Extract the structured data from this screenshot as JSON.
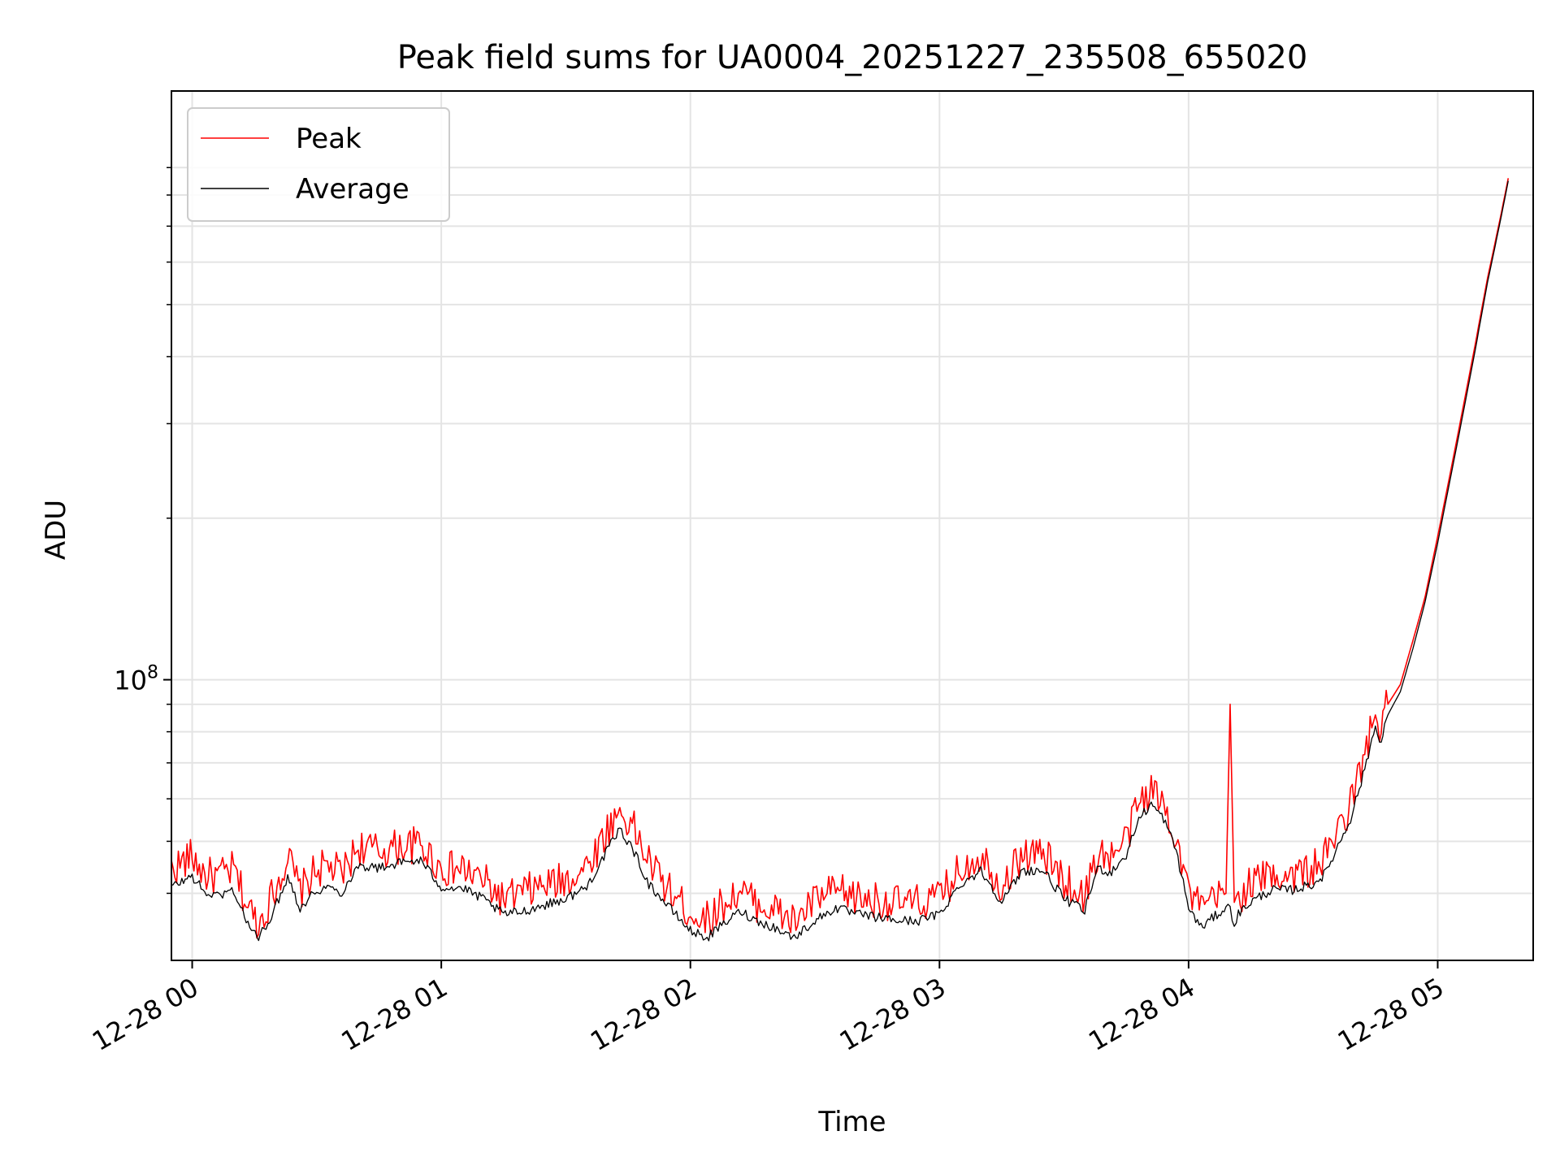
{
  "chart_data": {
    "type": "line",
    "title": "Peak field sums for UA0004_20251227_235508_655020",
    "xlabel": "Time",
    "ylabel": "ADU",
    "y_scale": "log",
    "ylim": [
      30000000,
      1250000000
    ],
    "xlim": [
      "2025-12-27 23:55",
      "2025-12-28 05:23"
    ],
    "grid": true,
    "legend_position": "upper left",
    "x_ticks": [
      {
        "value": "2025-12-28 00:00",
        "label": "12-28 00"
      },
      {
        "value": "2025-12-28 01:00",
        "label": "12-28 01"
      },
      {
        "value": "2025-12-28 02:00",
        "label": "12-28 02"
      },
      {
        "value": "2025-12-28 03:00",
        "label": "12-28 03"
      },
      {
        "value": "2025-12-28 04:00",
        "label": "12-28 04"
      },
      {
        "value": "2025-12-28 05:00",
        "label": "12-28 05"
      }
    ],
    "y_major_tick": {
      "value": 100000000,
      "label_base": "10",
      "label_exponent": "8"
    },
    "y_minor_ticks": [
      40000000,
      50000000,
      60000000,
      70000000,
      80000000,
      90000000,
      200000000,
      300000000,
      400000000,
      500000000,
      600000000,
      700000000,
      800000000,
      900000000
    ],
    "series": [
      {
        "name": "Peak",
        "color": "#ff0000",
        "x": [
          "2025-12-27 23:55",
          "2025-12-28 00:00",
          "2025-12-28 00:03",
          "2025-12-28 00:06",
          "2025-12-28 00:10",
          "2025-12-28 00:13",
          "2025-12-28 00:16",
          "2025-12-28 00:20",
          "2025-12-28 00:23",
          "2025-12-28 00:26",
          "2025-12-28 00:30",
          "2025-12-28 00:33",
          "2025-12-28 00:36",
          "2025-12-28 00:40",
          "2025-12-28 00:45",
          "2025-12-28 00:50",
          "2025-12-28 00:55",
          "2025-12-28 01:00",
          "2025-12-28 01:05",
          "2025-12-28 01:10",
          "2025-12-28 01:15",
          "2025-12-28 01:20",
          "2025-12-28 01:25",
          "2025-12-28 01:30",
          "2025-12-28 01:35",
          "2025-12-28 01:40",
          "2025-12-28 01:43",
          "2025-12-28 01:46",
          "2025-12-28 01:50",
          "2025-12-28 01:55",
          "2025-12-28 02:00",
          "2025-12-28 02:04",
          "2025-12-28 02:08",
          "2025-12-28 02:12",
          "2025-12-28 02:16",
          "2025-12-28 02:20",
          "2025-12-28 02:25",
          "2025-12-28 02:30",
          "2025-12-28 02:35",
          "2025-12-28 02:40",
          "2025-12-28 02:45",
          "2025-12-28 02:50",
          "2025-12-28 02:55",
          "2025-12-28 03:00",
          "2025-12-28 03:05",
          "2025-12-28 03:10",
          "2025-12-28 03:15",
          "2025-12-28 03:20",
          "2025-12-28 03:25",
          "2025-12-28 03:30",
          "2025-12-28 03:35",
          "2025-12-28 03:38",
          "2025-12-28 03:40",
          "2025-12-28 03:41",
          "2025-12-28 03:45",
          "2025-12-28 03:48",
          "2025-12-28 03:51",
          "2025-12-28 03:54",
          "2025-12-28 03:57",
          "2025-12-28 04:00",
          "2025-12-28 04:03",
          "2025-12-28 04:06",
          "2025-12-28 04:09",
          "2025-12-28 04:10",
          "2025-12-28 04:11",
          "2025-12-28 04:12",
          "2025-12-28 04:15",
          "2025-12-28 04:20",
          "2025-12-28 04:25",
          "2025-12-28 04:30",
          "2025-12-28 04:33",
          "2025-12-28 04:36",
          "2025-12-28 04:39",
          "2025-12-28 04:42",
          "2025-12-28 04:45",
          "2025-12-28 04:46",
          "2025-12-28 04:48",
          "2025-12-28 04:51",
          "2025-12-28 04:54",
          "2025-12-28 04:57",
          "2025-12-28 05:00",
          "2025-12-28 05:03",
          "2025-12-28 05:06",
          "2025-12-28 05:09",
          "2025-12-28 05:12",
          "2025-12-28 05:15",
          "2025-12-28 05:17"
        ],
        "y": [
          44000000,
          46500000,
          43000000,
          42500000,
          44000000,
          38000000,
          34800000,
          40500000,
          46500000,
          40000000,
          44000000,
          44500000,
          43000000,
          48500000,
          47500000,
          48500000,
          49000000,
          44000000,
          44000000,
          42000000,
          38500000,
          40000000,
          41000000,
          42000000,
          44500000,
          52000000,
          56500000,
          53000000,
          45500000,
          40000000,
          36500000,
          35500000,
          38000000,
          40000000,
          38000000,
          37000000,
          35000000,
          38500000,
          40000000,
          39000000,
          38500000,
          38000000,
          38000000,
          39000000,
          44000000,
          47000000,
          41000000,
          47000000,
          47000000,
          42000000,
          39000000,
          47000000,
          47000000,
          46000000,
          50000000,
          58500000,
          62000000,
          58000000,
          51000000,
          40000000,
          37000000,
          38500000,
          40000000,
          90000000,
          38000000,
          39000000,
          41500000,
          43000000,
          43000000,
          44000000,
          46500000,
          52000000,
          58000000,
          70000000,
          86000000,
          80000000,
          90000000,
          98000000,
          118000000,
          143000000,
          185000000,
          242000000,
          318000000,
          420000000,
          560000000,
          720000000,
          860000000
        ]
      },
      {
        "name": "Average",
        "color": "#000000",
        "x": [
          "2025-12-27 23:55",
          "2025-12-28 00:00",
          "2025-12-28 00:03",
          "2025-12-28 00:06",
          "2025-12-28 00:10",
          "2025-12-28 00:13",
          "2025-12-28 00:16",
          "2025-12-28 00:20",
          "2025-12-28 00:23",
          "2025-12-28 00:26",
          "2025-12-28 00:30",
          "2025-12-28 00:33",
          "2025-12-28 00:36",
          "2025-12-28 00:40",
          "2025-12-28 00:45",
          "2025-12-28 00:50",
          "2025-12-28 00:55",
          "2025-12-28 01:00",
          "2025-12-28 01:05",
          "2025-12-28 01:10",
          "2025-12-28 01:15",
          "2025-12-28 01:20",
          "2025-12-28 01:25",
          "2025-12-28 01:30",
          "2025-12-28 01:35",
          "2025-12-28 01:40",
          "2025-12-28 01:43",
          "2025-12-28 01:46",
          "2025-12-28 01:50",
          "2025-12-28 01:55",
          "2025-12-28 02:00",
          "2025-12-28 02:04",
          "2025-12-28 02:08",
          "2025-12-28 02:12",
          "2025-12-28 02:16",
          "2025-12-28 02:20",
          "2025-12-28 02:25",
          "2025-12-28 02:30",
          "2025-12-28 02:35",
          "2025-12-28 02:40",
          "2025-12-28 02:45",
          "2025-12-28 02:50",
          "2025-12-28 02:55",
          "2025-12-28 03:00",
          "2025-12-28 03:05",
          "2025-12-28 03:10",
          "2025-12-28 03:15",
          "2025-12-28 03:20",
          "2025-12-28 03:25",
          "2025-12-28 03:30",
          "2025-12-28 03:35",
          "2025-12-28 03:38",
          "2025-12-28 03:40",
          "2025-12-28 03:41",
          "2025-12-28 03:45",
          "2025-12-28 03:48",
          "2025-12-28 03:51",
          "2025-12-28 03:54",
          "2025-12-28 03:57",
          "2025-12-28 04:00",
          "2025-12-28 04:03",
          "2025-12-28 04:06",
          "2025-12-28 04:09",
          "2025-12-28 04:10",
          "2025-12-28 04:11",
          "2025-12-28 04:12",
          "2025-12-28 04:15",
          "2025-12-28 04:20",
          "2025-12-28 04:25",
          "2025-12-28 04:30",
          "2025-12-28 04:33",
          "2025-12-28 04:36",
          "2025-12-28 04:39",
          "2025-12-28 04:42",
          "2025-12-28 04:45",
          "2025-12-28 04:46",
          "2025-12-28 04:48",
          "2025-12-28 04:51",
          "2025-12-28 04:54",
          "2025-12-28 04:57",
          "2025-12-28 05:00",
          "2025-12-28 05:03",
          "2025-12-28 05:06",
          "2025-12-28 05:09",
          "2025-12-28 05:12",
          "2025-12-28 05:15",
          "2025-12-28 05:17"
        ],
        "y": [
          41000000,
          43000000,
          40000000,
          39500000,
          40500000,
          35500000,
          32800000,
          37500000,
          43000000,
          37500000,
          40500000,
          41000000,
          40000000,
          45000000,
          44500000,
          45500000,
          46000000,
          41000000,
          40800000,
          39000000,
          36500000,
          37000000,
          38000000,
          39000000,
          41000000,
          48000000,
          52500000,
          48500000,
          41500000,
          37500000,
          34000000,
          33000000,
          35000000,
          37000000,
          35500000,
          34500000,
          33000000,
          35500000,
          37500000,
          36500000,
          36000000,
          35500000,
          35500000,
          36500000,
          41500000,
          44000000,
          38500000,
          44000000,
          44000000,
          39000000,
          37000000,
          44500000,
          44000000,
          43500000,
          47000000,
          55000000,
          58500000,
          55000000,
          48000000,
          37500000,
          34500000,
          36000000,
          37500000,
          37500000,
          35000000,
          36500000,
          38500000,
          40500000,
          40500000,
          41500000,
          43500000,
          49000000,
          55000000,
          66000000,
          82000000,
          76000000,
          86000000,
          95000000,
          114000000,
          140000000,
          180000000,
          236000000,
          310000000,
          410000000,
          550000000,
          710000000,
          850000000
        ]
      }
    ]
  }
}
